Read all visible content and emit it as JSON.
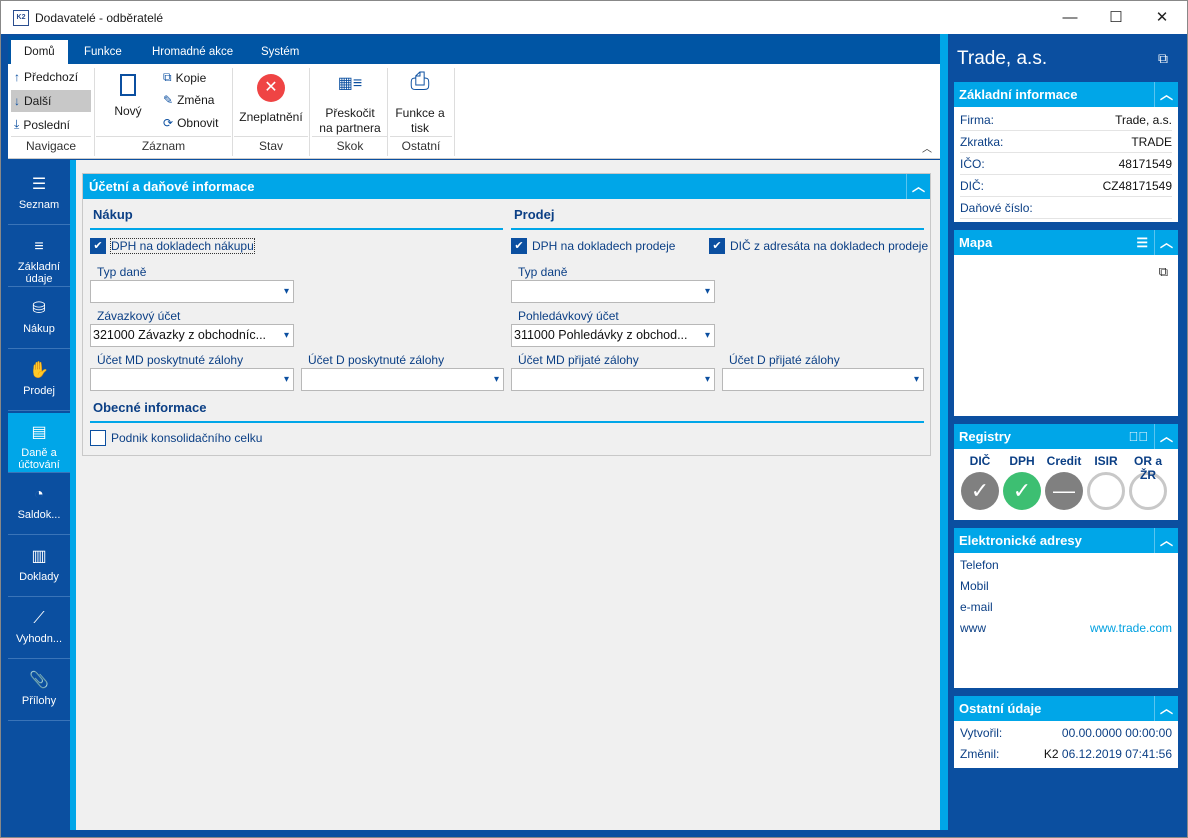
{
  "window": {
    "title": "Dodavatelé - odběratelé",
    "icon": "K2",
    "minimize": "—",
    "maximize": "☐",
    "close": "✕"
  },
  "ribbon": {
    "tabs": [
      "Domů",
      "Funkce",
      "Hromadné akce",
      "Systém"
    ],
    "nav": {
      "prev": "Předchozí",
      "next": "Další",
      "last": "Poslední",
      "group": "Navigace"
    },
    "record": {
      "new": "Nový",
      "copy": "Kopie",
      "edit": "Změna",
      "refresh": "Obnovit",
      "group": "Záznam"
    },
    "state": {
      "invalidate": "Zneplatnění",
      "group": "Stav"
    },
    "jump": {
      "label1": "Přeskočit",
      "label2": "na partnera",
      "group": "Skok"
    },
    "other": {
      "label1": "Funkce a",
      "label2": "tisk",
      "group": "Ostatní"
    }
  },
  "sidebar": {
    "items": [
      {
        "label": "Seznam",
        "icon": "☰"
      },
      {
        "label": "Základní údaje",
        "icon": "≡"
      },
      {
        "label": "Nákup",
        "icon": "⛁"
      },
      {
        "label": "Prodej",
        "icon": "✋"
      },
      {
        "label": "Daně a účtování",
        "icon": "▤"
      },
      {
        "label": "Saldok...",
        "icon": "◔"
      },
      {
        "label": "Doklady",
        "icon": "▥"
      },
      {
        "label": "Vyhodn...",
        "icon": "⟋"
      },
      {
        "label": "Přílohy",
        "icon": "📎"
      }
    ],
    "active": 4
  },
  "form": {
    "title": "Účetní a daňové informace",
    "purchase": {
      "title": "Nákup",
      "vat_check": "DPH na dokladech nákupu",
      "tax_type_label": "Typ daně",
      "tax_type": "",
      "payable_label": "Závazkový účet",
      "payable": "321000 Závazky z obchodníc...",
      "md_adv_label": "Účet MD poskytnuté zálohy",
      "md_adv": "",
      "d_adv_label": "Účet D poskytnuté zálohy",
      "d_adv": ""
    },
    "sale": {
      "title": "Prodej",
      "vat_check": "DPH na dokladech prodeje",
      "dic_check": "DIČ z adresáta na dokladech prodeje",
      "tax_type_label": "Typ daně",
      "tax_type": "",
      "receivable_label": "Pohledávkový účet",
      "receivable": "311000 Pohledávky z obchod...",
      "md_adv_label": "Účet MD přijaté zálohy",
      "md_adv": "",
      "d_adv_label": "Účet D přijaté zálohy",
      "d_adv": ""
    },
    "general": {
      "title": "Obecné informace",
      "consolidation": "Podnik konsolidačního celku"
    }
  },
  "right": {
    "title": "Trade, a.s.",
    "basic": {
      "title": "Základní informace",
      "rows": [
        [
          "Firma:",
          "Trade, a.s."
        ],
        [
          "Zkratka:",
          "TRADE"
        ],
        [
          "IČO:",
          "48171549"
        ],
        [
          "DIČ:",
          "CZ48171549"
        ],
        [
          "Daňové číslo:",
          ""
        ]
      ]
    },
    "map": {
      "title": "Mapa"
    },
    "registry": {
      "title": "Registry",
      "items": [
        {
          "name": "DIČ",
          "state": "ok-gray"
        },
        {
          "name": "DPH",
          "state": "ok-green"
        },
        {
          "name": "Credit",
          "state": "neutral"
        },
        {
          "name": "ISIR",
          "state": "empty"
        },
        {
          "name": "OR a ŽR",
          "state": "empty"
        }
      ],
      "colors": {
        "gray": "#808080",
        "green": "#3dbf72",
        "empty": "#c8c8c8"
      }
    },
    "contacts": {
      "title": "Elektronické adresy",
      "rows": [
        [
          "Telefon",
          ""
        ],
        [
          "Mobil",
          ""
        ],
        [
          "e-mail",
          ""
        ],
        [
          "www",
          "www.trade.com"
        ]
      ]
    },
    "other": {
      "title": "Ostatní údaje",
      "created_label": "Vytvořil:",
      "created": "00.00.0000 00:00:00",
      "changed_label": "Změnil:",
      "changed_user": "K2",
      "changed": "06.12.2019 07:41:56"
    }
  }
}
